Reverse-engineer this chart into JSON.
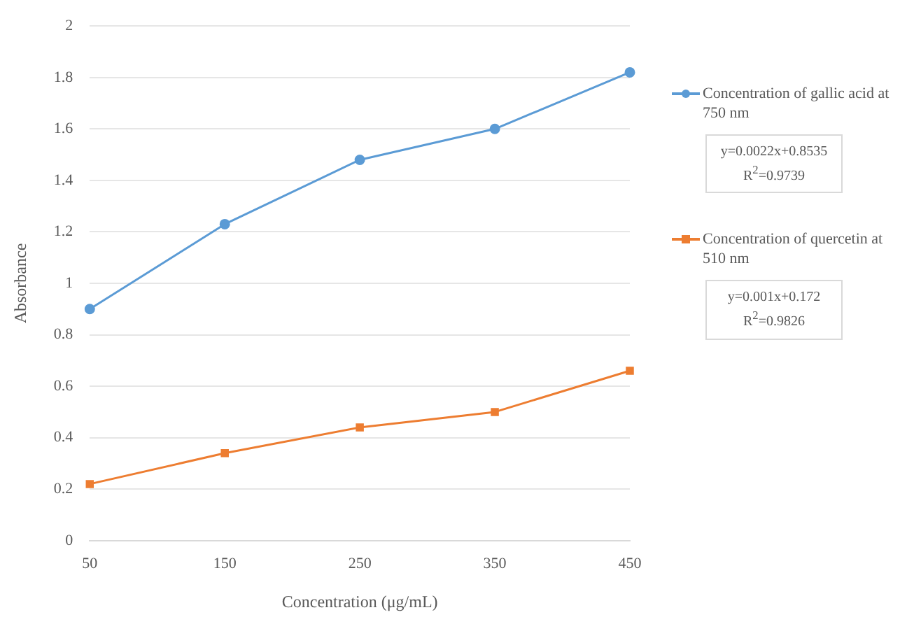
{
  "chart_data": {
    "type": "line",
    "xlabel": "Concentration (μg/mL)",
    "ylabel": "Absorbance",
    "categories": [
      "50",
      "150",
      "250",
      "350",
      "450"
    ],
    "series": [
      {
        "name": "Concentration of gallic acid at 750 nm",
        "color": "#5b9bd5",
        "marker": "circle",
        "values": [
          0.9,
          1.23,
          1.48,
          1.6,
          1.82
        ]
      },
      {
        "name": "Concentration of quercetin at 510 nm",
        "color": "#ed7d31",
        "marker": "square",
        "values": [
          0.22,
          0.34,
          0.44,
          0.5,
          0.66
        ]
      }
    ],
    "annotations": [
      "y=0.0022x+0.8535\nR$^{2}$=0.9739",
      "y=0.001x+0.172\nR$^{2}$=0.9826"
    ],
    "ylim": [
      0,
      2
    ],
    "yticks": [
      0,
      0.2,
      0.4,
      0.6,
      0.8,
      1,
      1.2,
      1.4,
      1.6,
      1.8,
      2
    ],
    "grid": "y",
    "legend": "right",
    "line_style": "solid"
  }
}
